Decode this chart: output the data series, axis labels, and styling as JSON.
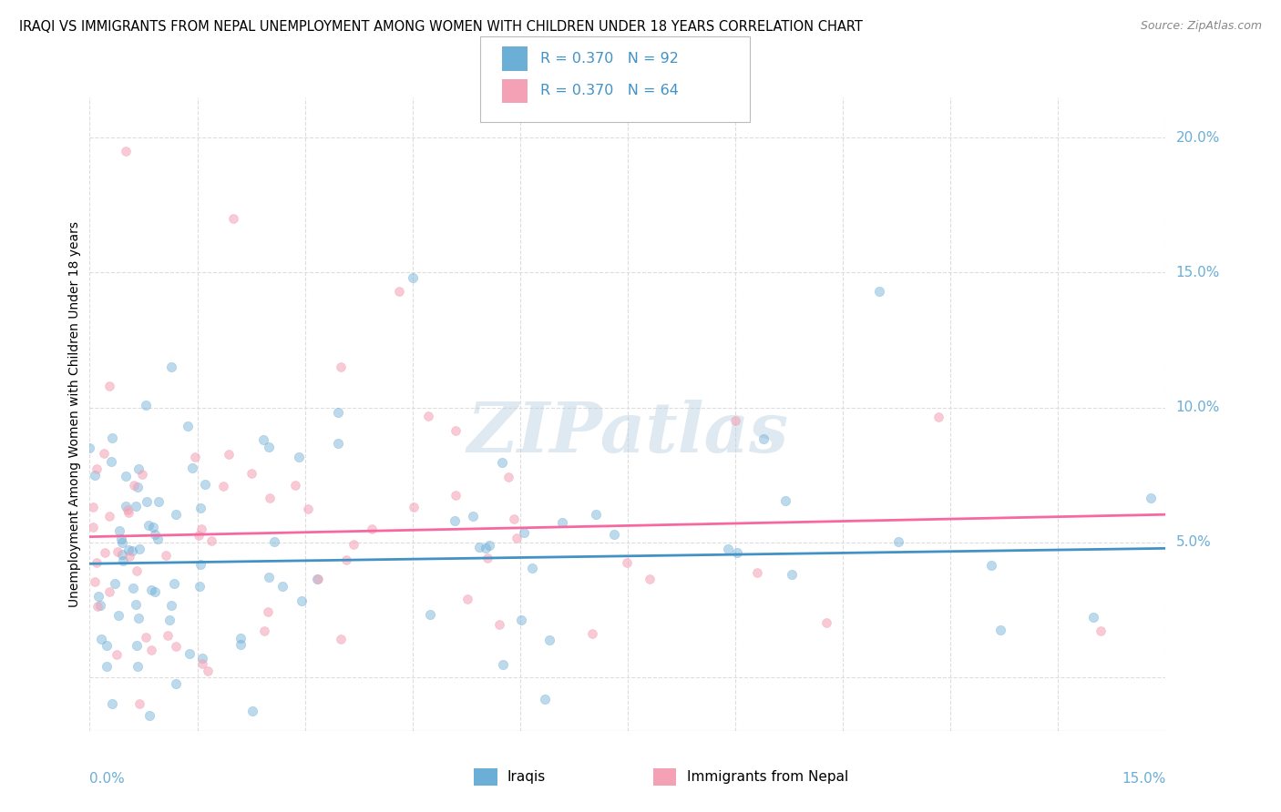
{
  "title": "IRAQI VS IMMIGRANTS FROM NEPAL UNEMPLOYMENT AMONG WOMEN WITH CHILDREN UNDER 18 YEARS CORRELATION CHART",
  "source": "Source: ZipAtlas.com",
  "ylabel": "Unemployment Among Women with Children Under 18 years",
  "xlim": [
    0.0,
    0.15
  ],
  "ylim": [
    -0.02,
    0.215
  ],
  "yticks": [
    0.0,
    0.05,
    0.1,
    0.15,
    0.2
  ],
  "ytick_labels": [
    "",
    "5.0%",
    "10.0%",
    "15.0%",
    "20.0%"
  ],
  "iraqi_color": "#6baed6",
  "nepal_color": "#f4a0b5",
  "iraqi_line_color": "#4292c6",
  "nepal_line_color": "#f768a1",
  "R_iraqi": 0.37,
  "N_iraqi": 92,
  "R_nepal": 0.37,
  "N_nepal": 64,
  "legend_iraqis": "Iraqis",
  "legend_nepal": "Immigrants from Nepal",
  "watermark": "ZIPatlas",
  "background_color": "#ffffff",
  "grid_color": "#dddddd",
  "iraqi_intercept": 0.042,
  "iraqi_slope": 0.038,
  "nepal_intercept": 0.052,
  "nepal_slope": 0.055
}
